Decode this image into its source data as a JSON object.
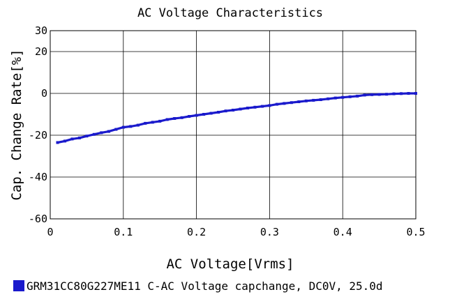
{
  "chart_data": {
    "type": "line",
    "title": "AC Voltage Characteristics",
    "xlabel": "AC Voltage[Vrms]",
    "ylabel": "Cap. Change Rate[%]",
    "xlim": [
      0,
      0.5
    ],
    "ylim": [
      -60,
      30
    ],
    "xticks": [
      0,
      0.1,
      0.2,
      0.3,
      0.4,
      0.5
    ],
    "xtick_labels": [
      "0",
      "0.1",
      "0.2",
      "0.3",
      "0.4",
      "0.5"
    ],
    "yticks": [
      -60,
      -40,
      -20,
      0,
      20,
      30
    ],
    "ytick_labels": [
      "-60",
      "-40",
      "-20",
      "0",
      "20",
      "30"
    ],
    "grid": true,
    "legend_position": "bottom",
    "series": [
      {
        "name": "GRM31CC80G227ME11 C-AC Voltage capchange, DC0V, 25.0d",
        "color": "#1a1acc",
        "x": [
          0.01,
          0.02,
          0.03,
          0.04,
          0.05,
          0.06,
          0.07,
          0.08,
          0.09,
          0.1,
          0.11,
          0.12,
          0.13,
          0.14,
          0.15,
          0.16,
          0.17,
          0.18,
          0.19,
          0.2,
          0.21,
          0.22,
          0.23,
          0.24,
          0.25,
          0.26,
          0.27,
          0.28,
          0.29,
          0.3,
          0.31,
          0.32,
          0.33,
          0.34,
          0.35,
          0.36,
          0.37,
          0.38,
          0.39,
          0.4,
          0.41,
          0.42,
          0.43,
          0.44,
          0.45,
          0.46,
          0.47,
          0.48,
          0.49,
          0.5
        ],
        "y": [
          -23.5,
          -22.8,
          -21.8,
          -21.3,
          -20.4,
          -19.6,
          -18.8,
          -18.2,
          -17.2,
          -16.2,
          -15.8,
          -15.2,
          -14.3,
          -13.8,
          -13.3,
          -12.5,
          -12.0,
          -11.6,
          -11.0,
          -10.5,
          -10.0,
          -9.5,
          -9.0,
          -8.4,
          -8.0,
          -7.5,
          -7.0,
          -6.6,
          -6.2,
          -5.8,
          -5.2,
          -4.8,
          -4.4,
          -4.0,
          -3.6,
          -3.3,
          -3.0,
          -2.6,
          -2.2,
          -1.9,
          -1.6,
          -1.3,
          -0.8,
          -0.6,
          -0.5,
          -0.4,
          -0.2,
          -0.1,
          0.0,
          0.0
        ]
      }
    ]
  }
}
